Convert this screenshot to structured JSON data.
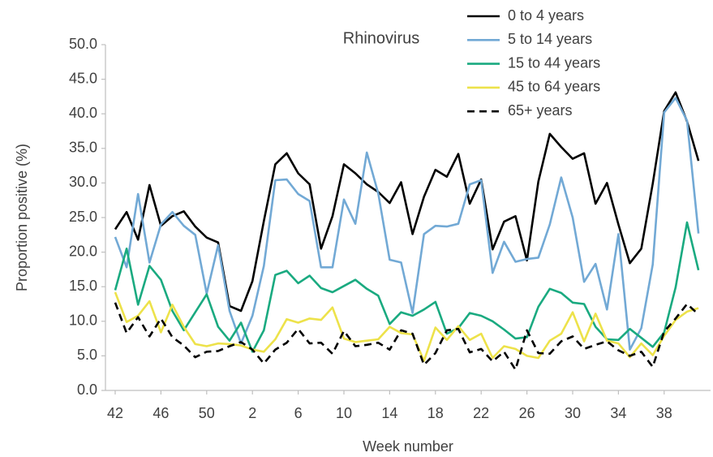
{
  "chart_data": {
    "type": "line",
    "title": "Rhinovirus",
    "x_label": "Week number",
    "y_label": "Proportion positive (%)",
    "categories": [
      "42",
      null,
      null,
      null,
      "46",
      null,
      null,
      null,
      "50",
      null,
      null,
      null,
      "2",
      null,
      null,
      null,
      "6",
      null,
      null,
      null,
      "10",
      null,
      null,
      null,
      "14",
      null,
      null,
      null,
      "18",
      null,
      null,
      null,
      "22",
      null,
      null,
      null,
      "26",
      null,
      null,
      null,
      "30",
      null,
      null,
      null,
      "34",
      null,
      null,
      null,
      "38",
      null,
      null,
      null
    ],
    "ylim": [
      0,
      50
    ],
    "yticks": [
      {
        "value": 0,
        "label": "0.0"
      },
      {
        "value": 5,
        "label": "5.0"
      },
      {
        "value": 10,
        "label": "10.0"
      },
      {
        "value": 15,
        "label": "15.0"
      },
      {
        "value": 20,
        "label": "20.0"
      },
      {
        "value": 25,
        "label": "25.0"
      },
      {
        "value": 30,
        "label": "30.0"
      },
      {
        "value": 35,
        "label": "35.0"
      },
      {
        "value": 40,
        "label": "40.0"
      },
      {
        "value": 45,
        "label": "45.0"
      },
      {
        "value": 50,
        "label": "50.0"
      }
    ],
    "grid": false,
    "legend": "top-right",
    "series": [
      {
        "name": "0 to 4 years",
        "color": "#000000",
        "dashed": false,
        "values": [
          23.3,
          25.8,
          21.8,
          29.7,
          23.8,
          25.2,
          25.9,
          23.7,
          22.1,
          21.4,
          12.2,
          11.5,
          15.8,
          24.5,
          32.7,
          34.3,
          31.4,
          29.8,
          20.5,
          25.2,
          32.7,
          31.4,
          29.8,
          28.7,
          27.1,
          30.1,
          22.6,
          28.0,
          31.9,
          30.9,
          34.2,
          27.0,
          30.5,
          20.4,
          24.4,
          25.2,
          18.8,
          30.2,
          37.1,
          35.2,
          33.5,
          34.3,
          27.0,
          30.0,
          24.0,
          18.4,
          20.5,
          29.9,
          40.4,
          43.1,
          38.9,
          33.2
        ]
      },
      {
        "name": "5 to 14 years",
        "color": "#72a9d5",
        "dashed": false,
        "values": [
          22.2,
          17.8,
          28.4,
          18.5,
          24.0,
          25.8,
          23.8,
          22.5,
          14.0,
          21.0,
          11.5,
          6.8,
          10.8,
          18.0,
          30.4,
          30.5,
          28.4,
          27.4,
          17.8,
          17.8,
          27.6,
          24.1,
          34.4,
          28.5,
          18.9,
          18.5,
          11.2,
          22.6,
          23.8,
          23.7,
          24.1,
          29.8,
          30.4,
          17.0,
          21.5,
          18.6,
          19.0,
          19.2,
          24.0,
          30.8,
          25.0,
          15.7,
          18.3,
          11.7,
          22.6,
          5.9,
          9.0,
          18.2,
          40.2,
          42.3,
          39.0,
          22.7
        ]
      },
      {
        "name": "15 to 44 years",
        "color": "#1aaa80",
        "dashed": false,
        "values": [
          14.5,
          20.5,
          12.4,
          18.0,
          16.0,
          11.5,
          8.7,
          11.3,
          13.9,
          9.2,
          7.2,
          9.8,
          5.6,
          8.7,
          16.7,
          17.3,
          15.5,
          16.6,
          14.8,
          14.2,
          15.1,
          16.0,
          14.7,
          13.7,
          9.6,
          11.3,
          10.8,
          11.7,
          12.8,
          8.2,
          9.0,
          11.2,
          10.8,
          10.0,
          8.8,
          7.5,
          7.7,
          12.1,
          14.7,
          14.1,
          12.7,
          12.5,
          9.2,
          7.4,
          7.3,
          8.9,
          7.6,
          6.3,
          8.4,
          14.9,
          24.3,
          17.4
        ]
      },
      {
        "name": "45 to 64 years",
        "color": "#ede24a",
        "dashed": false,
        "values": [
          14.2,
          9.9,
          10.8,
          12.9,
          8.4,
          12.4,
          9.2,
          6.7,
          6.4,
          6.8,
          6.7,
          6.5,
          5.9,
          5.6,
          7.4,
          10.3,
          9.8,
          10.4,
          10.2,
          12.0,
          7.5,
          7.0,
          7.2,
          7.4,
          9.2,
          8.3,
          8.1,
          4.3,
          9.1,
          7.3,
          9.3,
          7.3,
          8.2,
          4.7,
          6.4,
          6.0,
          5.0,
          4.7,
          7.2,
          8.2,
          11.3,
          7.1,
          11.1,
          7.2,
          6.8,
          4.8,
          6.8,
          5.1,
          7.9,
          10.2,
          11.4,
          11.9
        ]
      },
      {
        "name": "65+ years",
        "color": "#000000",
        "dashed": true,
        "values": [
          12.7,
          8.3,
          10.6,
          7.8,
          10.4,
          7.7,
          6.5,
          4.8,
          5.6,
          5.7,
          6.4,
          7.0,
          5.9,
          3.9,
          5.9,
          6.9,
          8.9,
          6.8,
          6.9,
          5.3,
          8.6,
          6.4,
          6.6,
          6.9,
          5.9,
          8.7,
          8.2,
          3.7,
          5.4,
          8.7,
          8.9,
          5.5,
          6.0,
          4.2,
          5.6,
          3.0,
          8.7,
          5.4,
          5.3,
          7.1,
          7.8,
          6.0,
          6.6,
          7.1,
          5.8,
          5.0,
          5.6,
          3.4,
          8.5,
          10.4,
          12.5,
          11.0
        ]
      }
    ]
  }
}
